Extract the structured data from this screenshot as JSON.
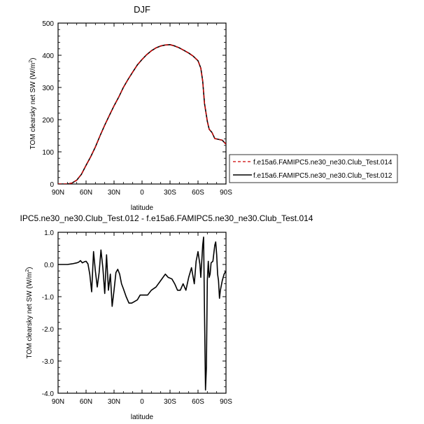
{
  "chart_data": [
    {
      "type": "line",
      "title": "DJF",
      "xlabel": "latitude",
      "ylabel": "TOM clearsky net SW (W/m",
      "ylabel_sup": "2",
      "ylabel_end": ")",
      "xlim": [
        90,
        -90
      ],
      "ylim": [
        0,
        500
      ],
      "x_ticks": [
        90,
        60,
        30,
        0,
        -30,
        -60,
        -90
      ],
      "x_tick_labels": [
        "90N",
        "60N",
        "30N",
        "0",
        "30S",
        "60S",
        "90S"
      ],
      "y_ticks": [
        0,
        100,
        200,
        300,
        400,
        500
      ],
      "y_tick_labels": [
        "0",
        "100",
        "200",
        "300",
        "400",
        "500"
      ],
      "legend_position": "right",
      "x": [
        90,
        80,
        75,
        70,
        65,
        60,
        55,
        50,
        45,
        40,
        35,
        30,
        25,
        20,
        15,
        10,
        5,
        0,
        -5,
        -10,
        -15,
        -20,
        -25,
        -30,
        -35,
        -40,
        -45,
        -50,
        -55,
        -60,
        -63,
        -65,
        -67,
        -70,
        -72,
        -75,
        -78,
        -80,
        -83,
        -86,
        -88,
        -90
      ],
      "series": [
        {
          "name": "f.e15a6.FAMIPC5.ne30_ne30.Club_Test.014",
          "color": "#cc0000",
          "dash": "dashed",
          "values": [
            0,
            0,
            3,
            12,
            30,
            58,
            85,
            115,
            150,
            183,
            213,
            243,
            270,
            300,
            325,
            348,
            370,
            387,
            402,
            414,
            423,
            429,
            432,
            433,
            429,
            423,
            415,
            407,
            397,
            383,
            360,
            320,
            250,
            195,
            170,
            160,
            141,
            140,
            138,
            136,
            130,
            124
          ]
        },
        {
          "name": "f.e15a6.FAMIPC5.ne30_ne30.Club_Test.012",
          "color": "#000000",
          "dash": "solid",
          "values": [
            0,
            0,
            3,
            12,
            30,
            58,
            85,
            115,
            150,
            183,
            213,
            243,
            270,
            300,
            325,
            348,
            370,
            387,
            402,
            414,
            423,
            429,
            432,
            433,
            429,
            423,
            415,
            407,
            397,
            383,
            360,
            320,
            250,
            195,
            170,
            160,
            141,
            140,
            138,
            136,
            130,
            124
          ]
        }
      ]
    },
    {
      "type": "line",
      "title": "IPC5.ne30_ne30.Club_Test.012 - f.e15a6.FAMIPC5.ne30_ne30.Club_Test.014",
      "xlabel": "latitude",
      "ylabel": "TOM clearsky net SW (W/m",
      "ylabel_sup": "2",
      "ylabel_end": ")",
      "xlim": [
        90,
        -90
      ],
      "ylim": [
        -4,
        1
      ],
      "x_ticks": [
        90,
        60,
        30,
        0,
        -30,
        -60,
        -90
      ],
      "x_tick_labels": [
        "90N",
        "60N",
        "30N",
        "0",
        "30S",
        "60S",
        "90S"
      ],
      "y_ticks": [
        1,
        0,
        -1,
        -2,
        -3,
        -4
      ],
      "y_tick_labels": [
        "1.0",
        "0.0",
        "-1.0",
        "-2.0",
        "-3.0",
        "-4.0"
      ],
      "x": [
        90,
        80,
        75,
        70,
        68,
        66,
        64,
        62,
        60,
        58,
        56,
        54,
        52,
        50,
        48,
        46,
        44,
        42,
        40,
        38,
        36,
        34,
        32,
        30,
        28,
        26,
        24,
        22,
        20,
        17,
        14,
        11,
        8,
        5,
        2,
        0,
        -3,
        -6,
        -10,
        -15,
        -20,
        -25,
        -28,
        -32,
        -35,
        -38,
        -41,
        -44,
        -47,
        -50,
        -53,
        -56,
        -58,
        -60,
        -62,
        -63,
        -65,
        -66,
        -67,
        -68,
        -69,
        -70,
        -71,
        -72,
        -73,
        -74,
        -76,
        -78,
        -79,
        -80,
        -81,
        -82,
        -83,
        -84,
        -86,
        -88,
        -90
      ],
      "values": [
        0,
        0,
        0.02,
        0.05,
        0.07,
        0.12,
        0.05,
        0.08,
        0.1,
        0.02,
        -0.3,
        -0.85,
        0.4,
        -0.2,
        -0.7,
        -0.25,
        0.45,
        -0.1,
        -0.9,
        0.3,
        -0.8,
        -0.3,
        -1.3,
        -0.8,
        -0.25,
        -0.15,
        -0.3,
        -0.6,
        -0.75,
        -1.0,
        -1.2,
        -1.2,
        -1.15,
        -1.1,
        -0.95,
        -0.95,
        -0.95,
        -0.95,
        -0.8,
        -0.7,
        -0.5,
        -0.3,
        -0.4,
        -0.45,
        -0.6,
        -0.8,
        -0.8,
        -0.6,
        -0.8,
        -0.4,
        -0.1,
        -0.6,
        0.1,
        0.4,
        0.0,
        -0.4,
        0.6,
        0.85,
        -1.5,
        -3.9,
        -3.2,
        -0.5,
        0.1,
        -0.4,
        -0.3,
        0.05,
        0.1,
        0.6,
        0.7,
        0.3,
        -0.3,
        -0.5,
        -1.05,
        -0.8,
        -0.5,
        -0.3,
        -0.2
      ]
    }
  ]
}
